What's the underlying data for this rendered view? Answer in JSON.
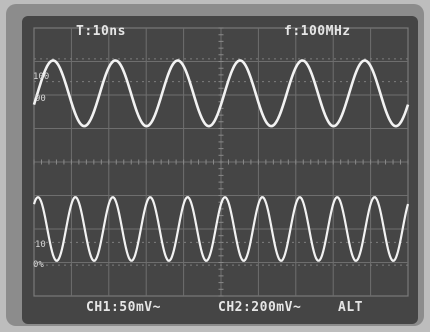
{
  "screen": {
    "timebase": "T:10ns",
    "frequency": "f:100MHz",
    "ch1_setting": "CH1:50mV~",
    "ch2_setting": "CH2:200mV~",
    "mode": "ALT",
    "marker_100_top": "100",
    "marker_90_top": "90",
    "marker_10_bottom": "10",
    "marker_0_bottom": "0%"
  },
  "traces": {
    "upper_cycles_visible": 6,
    "lower_cycles_visible": 10,
    "color": "#f2f2f2"
  }
}
